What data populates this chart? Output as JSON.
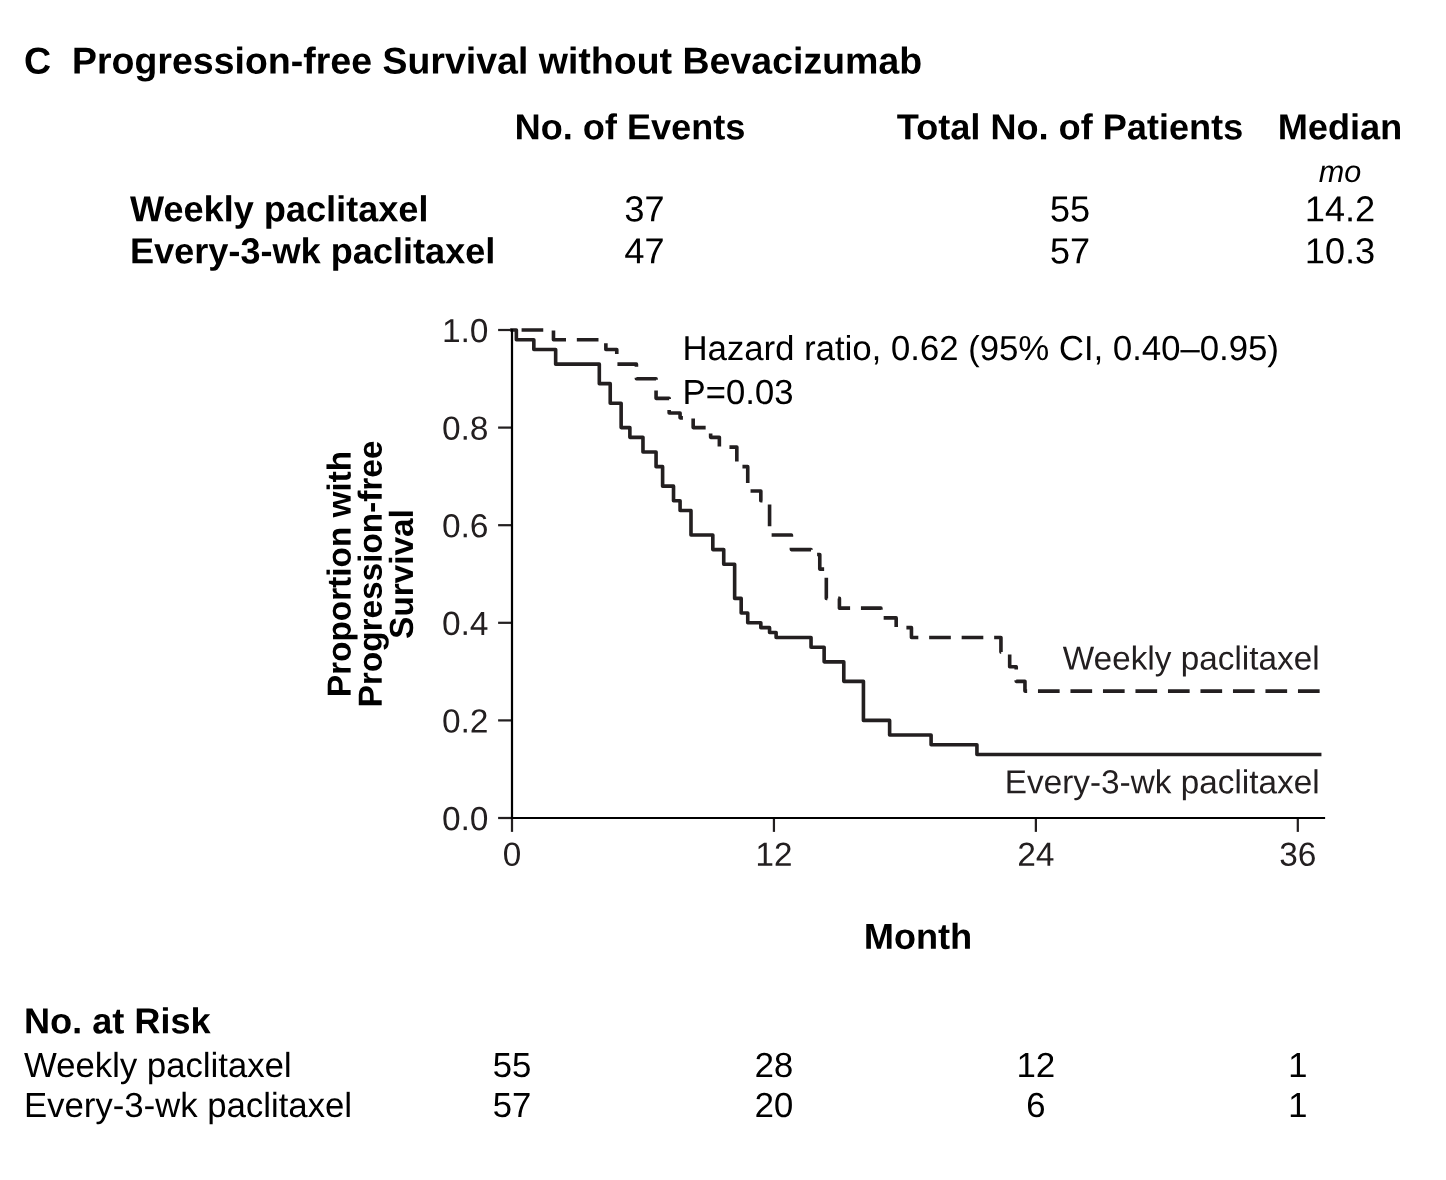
{
  "chart_data": {
    "type": "step",
    "title": "C  Progression-free Survival without Bevacizumab",
    "xlabel": "Month",
    "ylabel": "Proportion with\nProgression-free\nSurvival",
    "xlim": [
      0,
      37.2
    ],
    "xticks": [
      0,
      12,
      24,
      36
    ],
    "ylim": [
      0,
      1.0
    ],
    "yticks": [
      {
        "value": 0,
        "label": "0.0"
      },
      {
        "value": 0.2,
        "label": "0.2"
      },
      {
        "value": 0.4,
        "label": "0.4"
      },
      {
        "value": 0.6,
        "label": "0.6"
      },
      {
        "value": 0.8,
        "label": "0.8"
      },
      {
        "value": 1.0,
        "label": "1.0"
      }
    ],
    "grid": false,
    "legend": false,
    "marker": "none",
    "series": [
      {
        "name": "Weekly paclitaxel",
        "color": "#231f20",
        "line_style": "dashed",
        "x": [
          0,
          1.9,
          4.3,
          4.8,
          5.7,
          6.6,
          7.2,
          7.7,
          8.3,
          9.1,
          9.5,
          10.3,
          10.8,
          11.4,
          11.8,
          12.8,
          13.7,
          14.1,
          14.4,
          15.0,
          16.9,
          17.6,
          18.3,
          22.4,
          22.8,
          23.1,
          23.5,
          37
        ],
        "values": [
          1.0,
          0.98,
          0.96,
          0.93,
          0.9,
          0.86,
          0.83,
          0.82,
          0.8,
          0.78,
          0.76,
          0.72,
          0.67,
          0.65,
          0.58,
          0.55,
          0.54,
          0.51,
          0.45,
          0.43,
          0.41,
          0.39,
          0.37,
          0.34,
          0.31,
          0.28,
          0.26,
          0.26
        ]
      },
      {
        "name": "Every-3-wk paclitaxel",
        "color": "#231f20",
        "line_style": "solid",
        "x": [
          0,
          0.2,
          1.0,
          2.0,
          4.0,
          4.5,
          5.0,
          5.4,
          6.0,
          6.6,
          6.9,
          7.4,
          7.7,
          8.2,
          9.2,
          9.7,
          10.2,
          10.5,
          10.8,
          11.4,
          11.8,
          12.1,
          13.7,
          14.3,
          15.2,
          16.1,
          17.3,
          19.2,
          21.3,
          37
        ],
        "values": [
          1.0,
          0.98,
          0.96,
          0.93,
          0.89,
          0.85,
          0.8,
          0.78,
          0.75,
          0.72,
          0.68,
          0.65,
          0.63,
          0.58,
          0.55,
          0.52,
          0.45,
          0.42,
          0.4,
          0.39,
          0.38,
          0.37,
          0.35,
          0.32,
          0.28,
          0.2,
          0.17,
          0.15,
          0.13,
          0.13
        ]
      }
    ],
    "annotations": [
      "No. of Events",
      "Total No. of Patients",
      "Median",
      "mo",
      "Weekly paclitaxel",
      "37",
      "55",
      "14.2",
      "Every-3-wk paclitaxel",
      "47",
      "57",
      "10.3",
      "Hazard ratio, 0.62 (95% CI, 0.40–0.95)",
      "P=0.03",
      "No. at Risk",
      "Weekly paclitaxel",
      "55",
      "28",
      "12",
      "1",
      "Every-3-wk paclitaxel",
      "57",
      "20",
      "6",
      "1"
    ]
  }
}
